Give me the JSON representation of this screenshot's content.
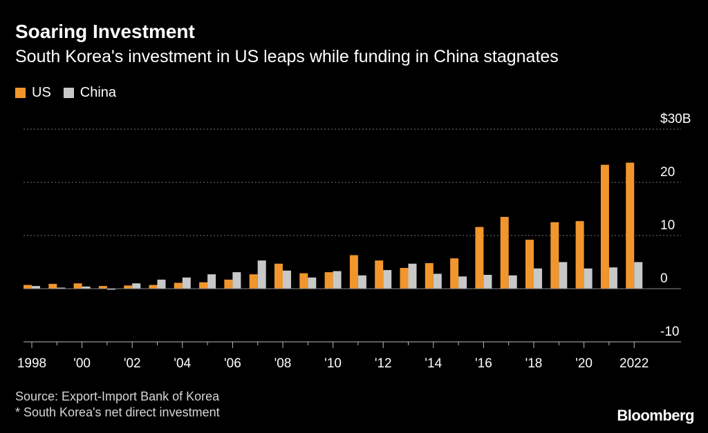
{
  "header": {
    "title": "Soaring Investment",
    "subtitle": "South Korea's investment in US leaps while funding in China stagnates"
  },
  "colors": {
    "background": "#000000",
    "us": "#f0962d",
    "china": "#c8c8c8",
    "grid": "#7a7a7a"
  },
  "footer": {
    "source": "Source: Export-Import Bank of Korea",
    "note": "* South Korea's net direct investment",
    "brand": "Bloomberg"
  },
  "chart_data": {
    "type": "bar",
    "title": "Soaring Investment",
    "subtitle": "South Korea's investment in US leaps while funding in China stagnates",
    "xlabel": "",
    "ylabel": "",
    "ylim": [
      -10,
      30
    ],
    "y_ticks": [
      -10,
      0,
      10,
      20,
      30
    ],
    "y_tick_labels": [
      "-10",
      "0",
      "10",
      "20",
      "$30B"
    ],
    "grid": true,
    "legend_position": "top-left",
    "categories": [
      "1998",
      "1999",
      "2000",
      "2001",
      "2002",
      "2003",
      "2004",
      "2005",
      "2006",
      "2007",
      "2008",
      "2009",
      "2010",
      "2011",
      "2012",
      "2013",
      "2014",
      "2015",
      "2016",
      "2017",
      "2018",
      "2019",
      "2020",
      "2021",
      "2022"
    ],
    "x_tick_labels": [
      "1998",
      "",
      "'00",
      "",
      "'02",
      "",
      "'04",
      "",
      "'06",
      "",
      "'08",
      "",
      "'10",
      "",
      "'12",
      "",
      "'14",
      "",
      "'16",
      "",
      "'18",
      "",
      "'20",
      "",
      "2022"
    ],
    "series": [
      {
        "name": "US",
        "values": [
          0.7,
          0.9,
          1.0,
          0.5,
          0.6,
          0.7,
          1.1,
          1.2,
          1.7,
          2.7,
          4.7,
          2.9,
          3.1,
          6.3,
          5.3,
          3.9,
          4.8,
          5.7,
          11.6,
          13.5,
          9.2,
          12.5,
          12.7,
          23.3,
          23.7
        ]
      },
      {
        "name": "China",
        "values": [
          0.5,
          0.2,
          0.4,
          -0.2,
          1.0,
          1.7,
          2.1,
          2.7,
          3.1,
          5.3,
          3.4,
          2.1,
          3.3,
          2.5,
          3.5,
          4.7,
          2.8,
          2.3,
          2.6,
          2.5,
          3.8,
          5.0,
          3.8,
          4.0,
          5.0
        ]
      }
    ]
  }
}
